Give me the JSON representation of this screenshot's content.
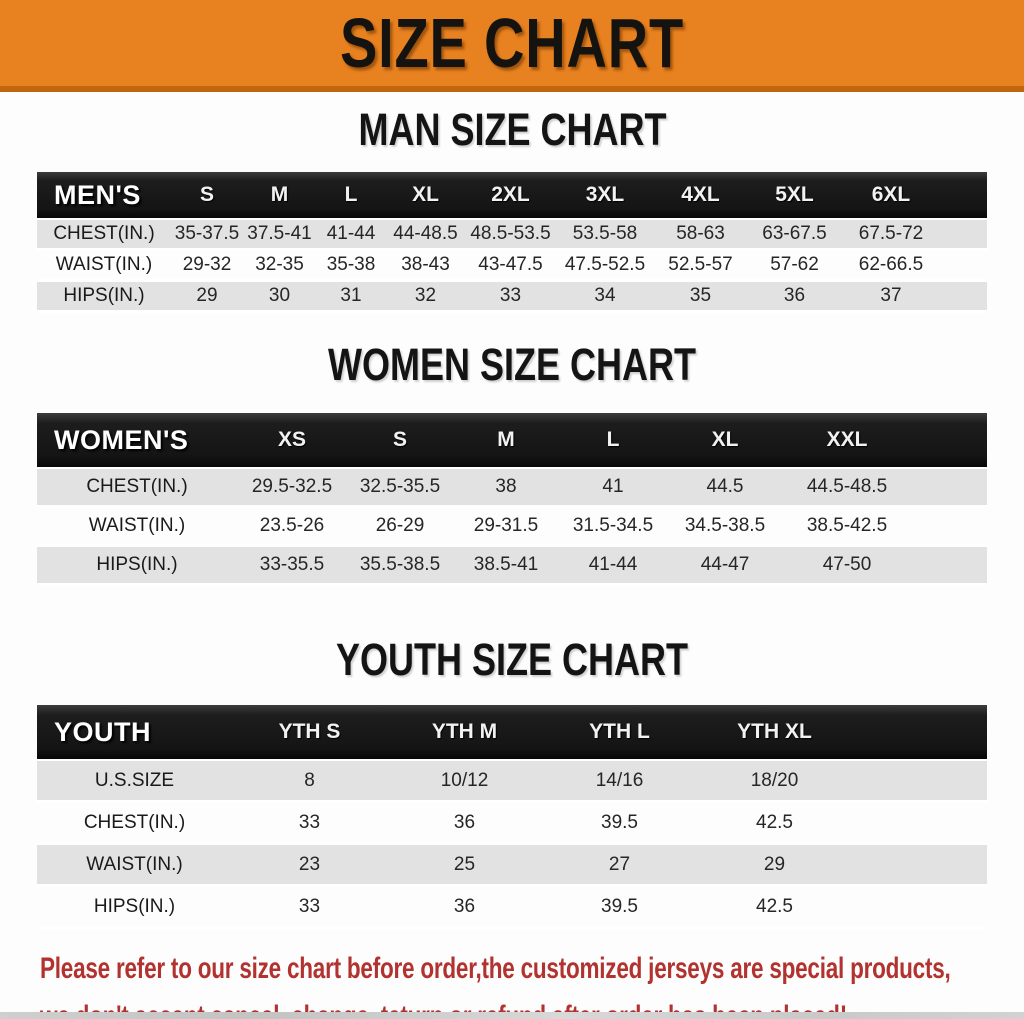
{
  "banner": {
    "title": "SIZE CHART",
    "bg_color": "#E8811F",
    "border_color": "#C2660E"
  },
  "sections": [
    {
      "id": "mens",
      "heading": "MAN SIZE CHART",
      "header_label": "MEN'S",
      "columns": [
        "S",
        "M",
        "L",
        "XL",
        "2XL",
        "3XL",
        "4XL",
        "5XL",
        "6XL"
      ],
      "rows": [
        {
          "label": "CHEST(IN.)",
          "values": [
            "35-37.5",
            "37.5-41",
            "41-44",
            "44-48.5",
            "48.5-53.5",
            "53.5-58",
            "58-63",
            "63-67.5",
            "67.5-72"
          ]
        },
        {
          "label": "WAIST(IN.)",
          "values": [
            "29-32",
            "32-35",
            "35-38",
            "38-43",
            "43-47.5",
            "47.5-52.5",
            "52.5-57",
            "57-62",
            "62-66.5"
          ]
        },
        {
          "label": "HIPS(IN.)",
          "values": [
            "29",
            "30",
            "31",
            "32",
            "33",
            "34",
            "35",
            "36",
            "37"
          ]
        }
      ]
    },
    {
      "id": "womens",
      "heading": "WOMEN SIZE CHART",
      "header_label": "WOMEN'S",
      "columns": [
        "XS",
        "S",
        "M",
        "L",
        "XL",
        "XXL"
      ],
      "rows": [
        {
          "label": "CHEST(IN.)",
          "values": [
            "29.5-32.5",
            "32.5-35.5",
            "38",
            "41",
            "44.5",
            "44.5-48.5"
          ]
        },
        {
          "label": "WAIST(IN.)",
          "values": [
            "23.5-26",
            "26-29",
            "29-31.5",
            "31.5-34.5",
            "34.5-38.5",
            "38.5-42.5"
          ]
        },
        {
          "label": "HIPS(IN.)",
          "values": [
            "33-35.5",
            "35.5-38.5",
            "38.5-41",
            "41-44",
            "44-47",
            "47-50"
          ]
        }
      ]
    },
    {
      "id": "youth",
      "heading": "YOUTH SIZE CHART",
      "header_label": "YOUTH",
      "columns": [
        "YTH S",
        "YTH M",
        "YTH L",
        "YTH XL"
      ],
      "rows": [
        {
          "label": "U.S.SIZE",
          "values": [
            "8",
            "10/12",
            "14/16",
            "18/20"
          ]
        },
        {
          "label": "CHEST(IN.)",
          "values": [
            "33",
            "36",
            "39.5",
            "42.5"
          ]
        },
        {
          "label": "WAIST(IN.)",
          "values": [
            "23",
            "25",
            "27",
            "29"
          ]
        },
        {
          "label": "HIPS(IN.)",
          "values": [
            "33",
            "36",
            "39.5",
            "42.5"
          ]
        }
      ]
    }
  ],
  "disclaimer": {
    "line1": "Please refer to our size chart before order,the customized jerseys are special products,",
    "line2": "we don't accept cancel, change, teturn or refund after order has been placed!",
    "text_color": "#B1322E"
  },
  "colors": {
    "header_bar_bg": "#161616",
    "row_gray": "#E3E2E2",
    "row_white": "#FDFDFD"
  }
}
